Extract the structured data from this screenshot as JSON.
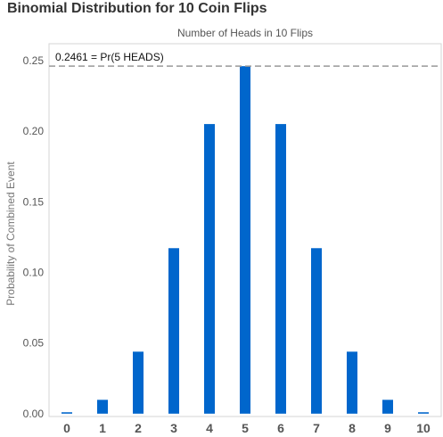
{
  "chart_data": {
    "type": "bar",
    "title": "Binomial Distribution for 10 Coin Flips",
    "xlabel": "Number of Heads in 10 Flips",
    "ylabel": "Probability of Combined Event",
    "categories": [
      "0",
      "1",
      "2",
      "3",
      "4",
      "5",
      "6",
      "7",
      "8",
      "9",
      "10"
    ],
    "values": [
      0.001,
      0.0098,
      0.0439,
      0.1172,
      0.2051,
      0.2461,
      0.2051,
      0.1172,
      0.0439,
      0.0098,
      0.001
    ],
    "ylim": [
      -0.002,
      0.262
    ],
    "yticks": [
      "0.00",
      "0.05",
      "0.10",
      "0.15",
      "0.20",
      "0.25"
    ],
    "grid": false,
    "bar_color": "#0066cc",
    "reference_line": {
      "value": 0.2461,
      "label": "0.2461 = Pr(5 HEADS)",
      "color": "#999999",
      "style": "dashed"
    }
  }
}
